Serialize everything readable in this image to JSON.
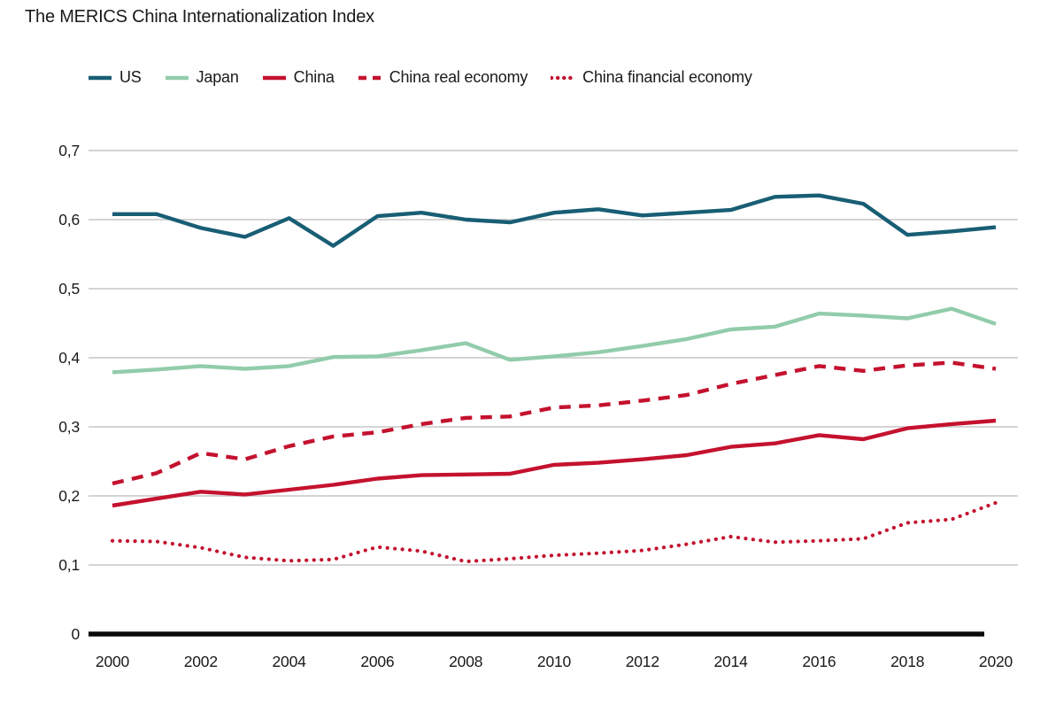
{
  "title": "The MERICS China Internationalization Index",
  "colors": {
    "us": "#185E74",
    "japan": "#92CCAB",
    "china": "#C4122E",
    "grid": "#C6C6C6",
    "zero_axis": "#0A0A0A",
    "text": "#1A1A1A"
  },
  "chart_data": {
    "type": "line",
    "title": "The MERICS China Internationalization Index",
    "xlabel": "",
    "ylabel": "",
    "ylim": [
      0,
      0.7
    ],
    "grid": true,
    "legend_position": "top",
    "decimal_separator": ",",
    "x": [
      2000,
      2001,
      2002,
      2003,
      2004,
      2005,
      2006,
      2007,
      2008,
      2009,
      2010,
      2011,
      2012,
      2013,
      2014,
      2015,
      2016,
      2017,
      2018,
      2019,
      2020
    ],
    "xtick_labels": [
      "2000",
      "2002",
      "2004",
      "2006",
      "2008",
      "2010",
      "2012",
      "2014",
      "2016",
      "2018",
      "2020"
    ],
    "yticks": [
      {
        "value": 0.0,
        "label": "0"
      },
      {
        "value": 0.1,
        "label": "0,1"
      },
      {
        "value": 0.2,
        "label": "0,2"
      },
      {
        "value": 0.3,
        "label": "0,3"
      },
      {
        "value": 0.4,
        "label": "0,4"
      },
      {
        "value": 0.5,
        "label": "0,5"
      },
      {
        "value": 0.6,
        "label": "0,6"
      },
      {
        "value": 0.7,
        "label": "0,7"
      }
    ],
    "series": [
      {
        "name": "US",
        "color_key": "us",
        "style": "solid",
        "values": [
          0.608,
          0.608,
          0.588,
          0.575,
          0.602,
          0.562,
          0.605,
          0.61,
          0.6,
          0.596,
          0.61,
          0.615,
          0.606,
          0.61,
          0.614,
          0.633,
          0.635,
          0.623,
          0.578,
          0.583,
          0.589
        ]
      },
      {
        "name": "Japan",
        "color_key": "japan",
        "style": "solid",
        "values": [
          0.379,
          0.383,
          0.388,
          0.384,
          0.388,
          0.401,
          0.402,
          0.411,
          0.421,
          0.397,
          0.402,
          0.408,
          0.417,
          0.427,
          0.441,
          0.445,
          0.464,
          0.461,
          0.457,
          0.471,
          0.449
        ]
      },
      {
        "name": "China",
        "color_key": "china",
        "style": "solid",
        "values": [
          0.186,
          0.196,
          0.206,
          0.202,
          0.209,
          0.216,
          0.225,
          0.23,
          0.231,
          0.232,
          0.245,
          0.248,
          0.253,
          0.259,
          0.271,
          0.276,
          0.288,
          0.282,
          0.298,
          0.304,
          0.309
        ]
      },
      {
        "name": "China real economy",
        "color_key": "china",
        "style": "dashed",
        "values": [
          0.218,
          0.233,
          0.262,
          0.253,
          0.272,
          0.286,
          0.292,
          0.304,
          0.313,
          0.315,
          0.328,
          0.331,
          0.338,
          0.346,
          0.362,
          0.375,
          0.388,
          0.381,
          0.389,
          0.393,
          0.384
        ]
      },
      {
        "name": "China financial economy",
        "color_key": "china",
        "style": "dotted",
        "values": [
          0.135,
          0.134,
          0.125,
          0.111,
          0.106,
          0.108,
          0.126,
          0.12,
          0.105,
          0.109,
          0.114,
          0.117,
          0.121,
          0.13,
          0.141,
          0.133,
          0.135,
          0.138,
          0.161,
          0.166,
          0.19
        ]
      }
    ]
  }
}
